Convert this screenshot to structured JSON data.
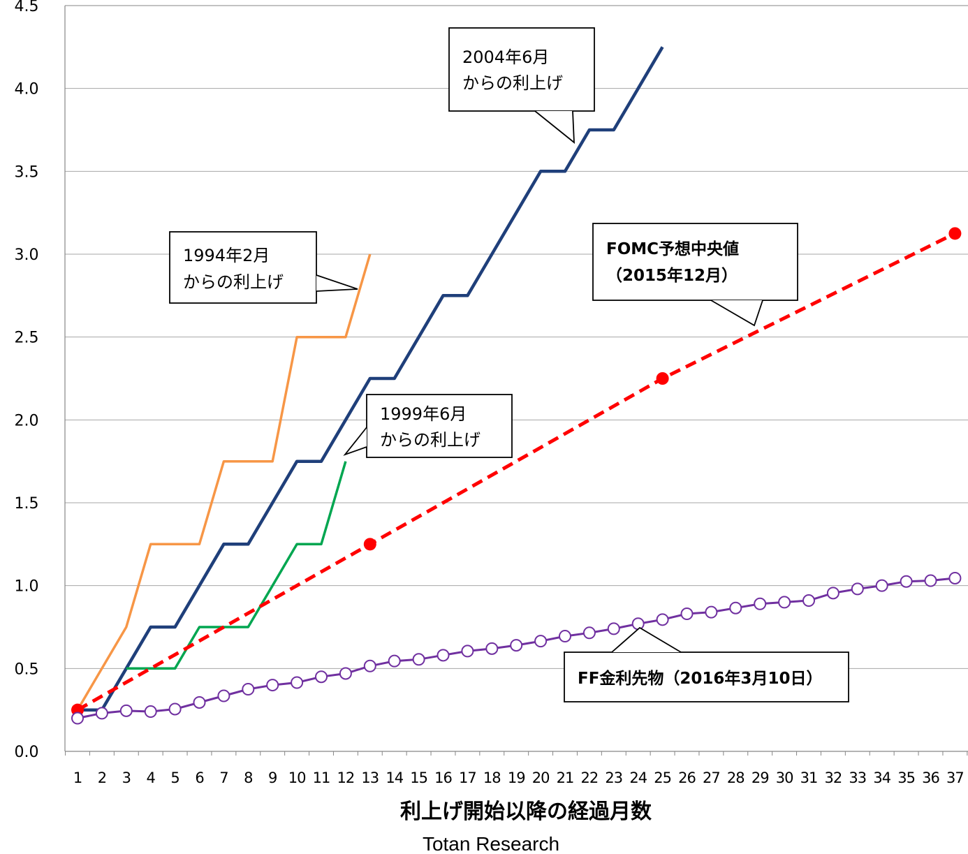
{
  "chart_data": {
    "type": "line",
    "title": "",
    "xlabel": "利上げ開始以降の経過月数",
    "ylabel": "",
    "credit": "Totan Research",
    "x_categories": [
      "1",
      "2",
      "3",
      "4",
      "5",
      "6",
      "7",
      "8",
      "9",
      "10",
      "11",
      "12",
      "13",
      "14",
      "15",
      "16",
      "17",
      "18",
      "19",
      "20",
      "21",
      "22",
      "23",
      "24",
      "25",
      "26",
      "27",
      "28",
      "29",
      "30",
      "31",
      "32",
      "33",
      "34",
      "35",
      "36",
      "37"
    ],
    "yticks": [
      "0.0",
      "0.5",
      "1.0",
      "1.5",
      "2.0",
      "2.5",
      "3.0",
      "3.5",
      "4.0",
      "4.5"
    ],
    "ylim": [
      0,
      4.5
    ],
    "grid": true,
    "series": [
      {
        "key": "s1994",
        "color": "#f79646",
        "style": "step",
        "points": [
          [
            1,
            0.25
          ],
          [
            2,
            0.5
          ],
          [
            3,
            0.75
          ],
          [
            4,
            1.25
          ],
          [
            5,
            1.25
          ],
          [
            6,
            1.25
          ],
          [
            7,
            1.75
          ],
          [
            8,
            1.75
          ],
          [
            9,
            1.75
          ],
          [
            10,
            2.5
          ],
          [
            11,
            2.5
          ],
          [
            12,
            2.5
          ],
          [
            13,
            3.0
          ]
        ]
      },
      {
        "key": "s2004",
        "color": "#1f3f7a",
        "style": "step",
        "points": [
          [
            1,
            0.25
          ],
          [
            2,
            0.25
          ],
          [
            3,
            0.5
          ],
          [
            4,
            0.75
          ],
          [
            5,
            0.75
          ],
          [
            6,
            1.0
          ],
          [
            7,
            1.25
          ],
          [
            8,
            1.25
          ],
          [
            9,
            1.5
          ],
          [
            10,
            1.75
          ],
          [
            11,
            1.75
          ],
          [
            12,
            2.0
          ],
          [
            13,
            2.25
          ],
          [
            14,
            2.25
          ],
          [
            15,
            2.5
          ],
          [
            16,
            2.75
          ],
          [
            17,
            2.75
          ],
          [
            18,
            3.0
          ],
          [
            19,
            3.25
          ],
          [
            20,
            3.5
          ],
          [
            21,
            3.5
          ],
          [
            22,
            3.75
          ],
          [
            23,
            3.75
          ],
          [
            24,
            4.0
          ],
          [
            25,
            4.25
          ]
        ]
      },
      {
        "key": "s1999",
        "color": "#00a650",
        "style": "step",
        "points": [
          [
            3,
            0.5
          ],
          [
            4,
            0.5
          ],
          [
            5,
            0.5
          ],
          [
            6,
            0.75
          ],
          [
            7,
            0.75
          ],
          [
            8,
            0.75
          ],
          [
            9,
            1.0
          ],
          [
            10,
            1.25
          ],
          [
            11,
            1.25
          ],
          [
            12,
            1.75
          ]
        ]
      },
      {
        "key": "fomc",
        "color": "#ff0000",
        "style": "dashed",
        "points": [
          [
            1,
            0.25
          ],
          [
            13,
            1.25
          ],
          [
            25,
            2.25
          ],
          [
            37,
            3.125
          ]
        ],
        "markers": [
          [
            1,
            0.25
          ],
          [
            13,
            1.25
          ],
          [
            25,
            2.25
          ],
          [
            37,
            3.125
          ]
        ]
      },
      {
        "key": "ff",
        "color": "#7030a0",
        "style": "markers",
        "points": [
          [
            1,
            0.2
          ],
          [
            2,
            0.23
          ],
          [
            3,
            0.245
          ],
          [
            4,
            0.24
          ],
          [
            5,
            0.255
          ],
          [
            6,
            0.295
          ],
          [
            7,
            0.335
          ],
          [
            8,
            0.375
          ],
          [
            9,
            0.4
          ],
          [
            10,
            0.415
          ],
          [
            11,
            0.45
          ],
          [
            12,
            0.47
          ],
          [
            13,
            0.515
          ],
          [
            14,
            0.545
          ],
          [
            15,
            0.555
          ],
          [
            16,
            0.58
          ],
          [
            17,
            0.605
          ],
          [
            18,
            0.62
          ],
          [
            19,
            0.64
          ],
          [
            20,
            0.665
          ],
          [
            21,
            0.695
          ],
          [
            22,
            0.715
          ],
          [
            23,
            0.74
          ],
          [
            24,
            0.77
          ],
          [
            25,
            0.795
          ],
          [
            26,
            0.83
          ],
          [
            27,
            0.84
          ],
          [
            28,
            0.865
          ],
          [
            29,
            0.89
          ],
          [
            30,
            0.9
          ],
          [
            31,
            0.91
          ],
          [
            32,
            0.955
          ],
          [
            33,
            0.98
          ],
          [
            34,
            1.0
          ],
          [
            35,
            1.025
          ],
          [
            36,
            1.03
          ],
          [
            37,
            1.045
          ]
        ]
      }
    ],
    "annotations": [
      {
        "key": "a2004",
        "lines": [
          "2004年6月",
          "からの利上げ"
        ],
        "bold": false
      },
      {
        "key": "a1994",
        "lines": [
          "1994年2月",
          "からの利上げ"
        ],
        "bold": false
      },
      {
        "key": "a1999",
        "lines": [
          "1999年6月",
          "からの利上げ"
        ],
        "bold": false
      },
      {
        "key": "afomc",
        "lines": [
          "FOMC予想中央値",
          "（2015年12月）"
        ],
        "bold": true
      },
      {
        "key": "aff",
        "lines": [
          "FF金利先物（2016年3月10日）"
        ],
        "bold": true
      }
    ]
  }
}
